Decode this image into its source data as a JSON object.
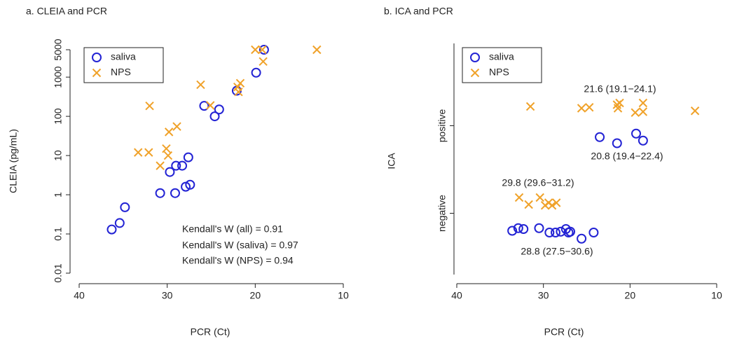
{
  "chart_data": [
    {
      "type": "scatter",
      "title": "a. CLEIA and PCR",
      "x_label": "PCR (Ct)",
      "y_label": "CLEIA (pg/mL)",
      "log_y": true,
      "xlim": [
        40,
        10
      ],
      "xticks": [
        40,
        30,
        20,
        10
      ],
      "ylim": [
        0.01,
        5000
      ],
      "yticks": [
        0.01,
        0.1,
        1,
        10,
        100,
        1000,
        5000
      ],
      "legend": "top-left",
      "series": [
        {
          "name": "saliva",
          "color": "#2323d4",
          "marker": "circle",
          "x": [
            36.3,
            35.4,
            34.8,
            30.8,
            29.7,
            29.1,
            29.0,
            28.3,
            27.9,
            27.6,
            27.4,
            25.8,
            24.6,
            24.1,
            22.1,
            19.9,
            19.0
          ],
          "values": [
            0.13,
            0.19,
            0.48,
            1.1,
            3.8,
            1.1,
            5.5,
            5.5,
            1.6,
            9,
            1.8,
            185,
            100,
            150,
            450,
            1300,
            5000
          ]
        },
        {
          "name": "NPS",
          "color": "#f0a22a",
          "marker": "x",
          "x": [
            33.3,
            32.1,
            32.0,
            30.8,
            30.1,
            29.9,
            29.8,
            28.9,
            26.2,
            25.1,
            22.0,
            21.9,
            21.7,
            20.0,
            19.2,
            19.1,
            13.0
          ],
          "values": [
            12,
            12,
            185,
            5.5,
            15,
            10,
            40,
            55,
            640,
            190,
            560,
            420,
            700,
            5000,
            5000,
            2500,
            5000
          ]
        }
      ],
      "annotations": [
        "Kendall's W (all) = 0.91",
        "Kendall's W (saliva) = 0.97",
        "Kendall's W (NPS) = 0.94"
      ]
    },
    {
      "type": "scatter",
      "title": "b. ICA and PCR",
      "x_label": "PCR (Ct)",
      "y_label": "ICA",
      "log_y": false,
      "xlim": [
        40,
        10
      ],
      "xticks": [
        40,
        30,
        20,
        10
      ],
      "ylim": [
        -0.7,
        1.94
      ],
      "yticks": [
        {
          "value": 0,
          "label": "negative"
        },
        {
          "value": 1,
          "label": "positive"
        }
      ],
      "legend": "top-left",
      "series": [
        {
          "name": "saliva",
          "color": "#2323d4",
          "marker": "circle",
          "x": [
            23.5,
            21.5,
            19.3,
            18.5,
            33.6,
            32.9,
            32.3,
            30.5,
            29.3,
            28.6,
            28.0,
            27.4,
            27.1,
            26.9,
            25.6,
            24.2
          ],
          "values": [
            0.87,
            0.8,
            0.91,
            0.83,
            -0.2,
            -0.17,
            -0.18,
            -0.17,
            -0.22,
            -0.22,
            -0.21,
            -0.18,
            -0.22,
            -0.21,
            -0.29,
            -0.22
          ]
        },
        {
          "name": "NPS",
          "color": "#f0a22a",
          "marker": "x",
          "x": [
            31.5,
            25.6,
            24.7,
            21.5,
            21.4,
            21.2,
            19.4,
            18.5,
            18.5,
            12.5,
            32.8,
            31.7,
            30.4,
            29.8,
            29.4,
            29.0,
            28.5
          ],
          "values": [
            1.22,
            1.2,
            1.21,
            1.24,
            1.2,
            1.26,
            1.15,
            1.26,
            1.16,
            1.17,
            0.18,
            0.1,
            0.18,
            0.09,
            0.12,
            0.09,
            0.12
          ]
        }
      ],
      "annotations": [
        "21.6 (19.1−24.1)",
        "20.8 (19.4−22.4)",
        "29.8 (29.6−31.2)",
        "28.8 (27.5−30.6)"
      ]
    }
  ]
}
